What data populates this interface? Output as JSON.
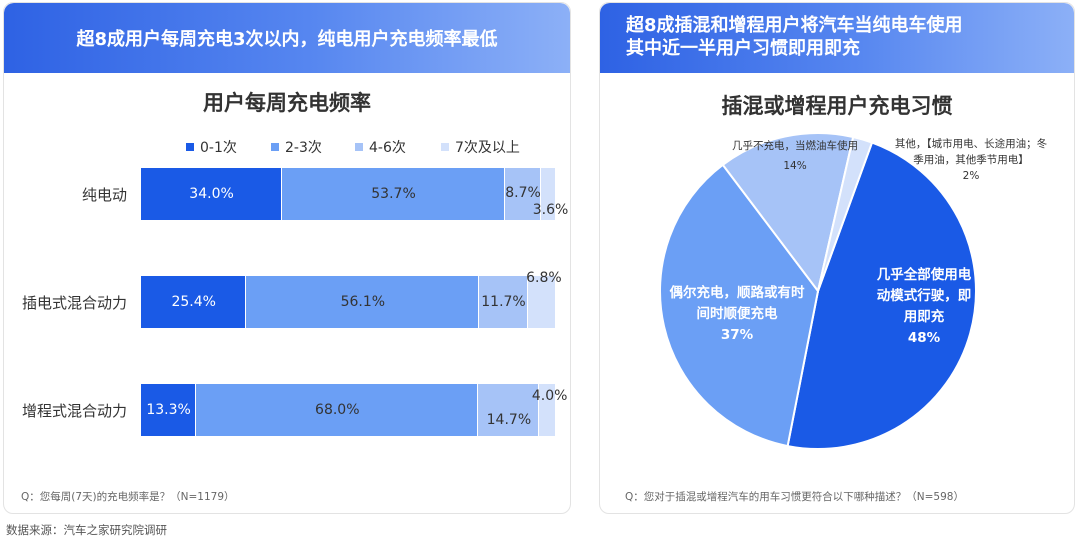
{
  "left_panel": {
    "banner_title": "超8成用户每周充电3次以内，纯电用户充电频率最低",
    "note": "Q：您每周(7天)的充电频率是？（N=1179）"
  },
  "right_panel": {
    "banner_line1": "超8成插混和增程用户将汽车当纯电车使用",
    "banner_line2": "其中近一半用户习惯即用即充",
    "note": "Q：您对于插混或增程汽车的用车习惯更符合以下哪种描述？（N=598）"
  },
  "footer": "数据来源：汽车之家研究院调研",
  "chart_data": [
    {
      "type": "bar",
      "orientation": "horizontal-stacked-percent",
      "title": "用户每周充电频率",
      "categories": [
        "纯电动",
        "插电式混合动力",
        "增程式混合动力"
      ],
      "series": [
        {
          "name": "0-1次",
          "color": "#1a5ae6",
          "values": [
            34.0,
            25.4,
            13.3
          ],
          "labels": [
            "34.0%",
            "25.4%",
            "13.3%"
          ]
        },
        {
          "name": "2-3次",
          "color": "#6b9ff5",
          "values": [
            53.7,
            56.1,
            68.0
          ],
          "labels": [
            "53.7%",
            "56.1%",
            "68.0%"
          ]
        },
        {
          "name": "4-6次",
          "color": "#a6c3f7",
          "values": [
            8.7,
            11.7,
            14.7
          ],
          "labels": [
            "8.7%",
            "11.7%",
            "14.7%"
          ]
        },
        {
          "name": "7次及以上",
          "color": "#d3e1fb",
          "values": [
            3.6,
            6.8,
            4.0
          ],
          "labels": [
            "3.6%",
            "6.8%",
            "4.0%"
          ]
        }
      ],
      "legend_position": "top",
      "xlim": [
        0,
        100
      ]
    },
    {
      "type": "pie",
      "title": "插混或增程用户充电习惯",
      "slices": [
        {
          "label_lines": [
            "几乎全部使用电",
            "动模式行驶，即",
            "用即充"
          ],
          "value_label": "48%",
          "value": 48,
          "color": "#1a5ae6"
        },
        {
          "label_lines": [
            "偶尔充电，顺路或有时",
            "间时顺便充电"
          ],
          "value_label": "37%",
          "value": 37,
          "color": "#6b9ff5"
        },
        {
          "label_lines": [
            "几乎不充电，当燃油车使用"
          ],
          "value_label": "14%",
          "value": 14,
          "color": "#a6c3f7"
        },
        {
          "label_lines": [
            "其他，【城市用电、长途用油；冬",
            "季用油，其他季节用电】"
          ],
          "value_label": "2%",
          "value": 2,
          "color": "#d3e1fb"
        }
      ]
    }
  ]
}
